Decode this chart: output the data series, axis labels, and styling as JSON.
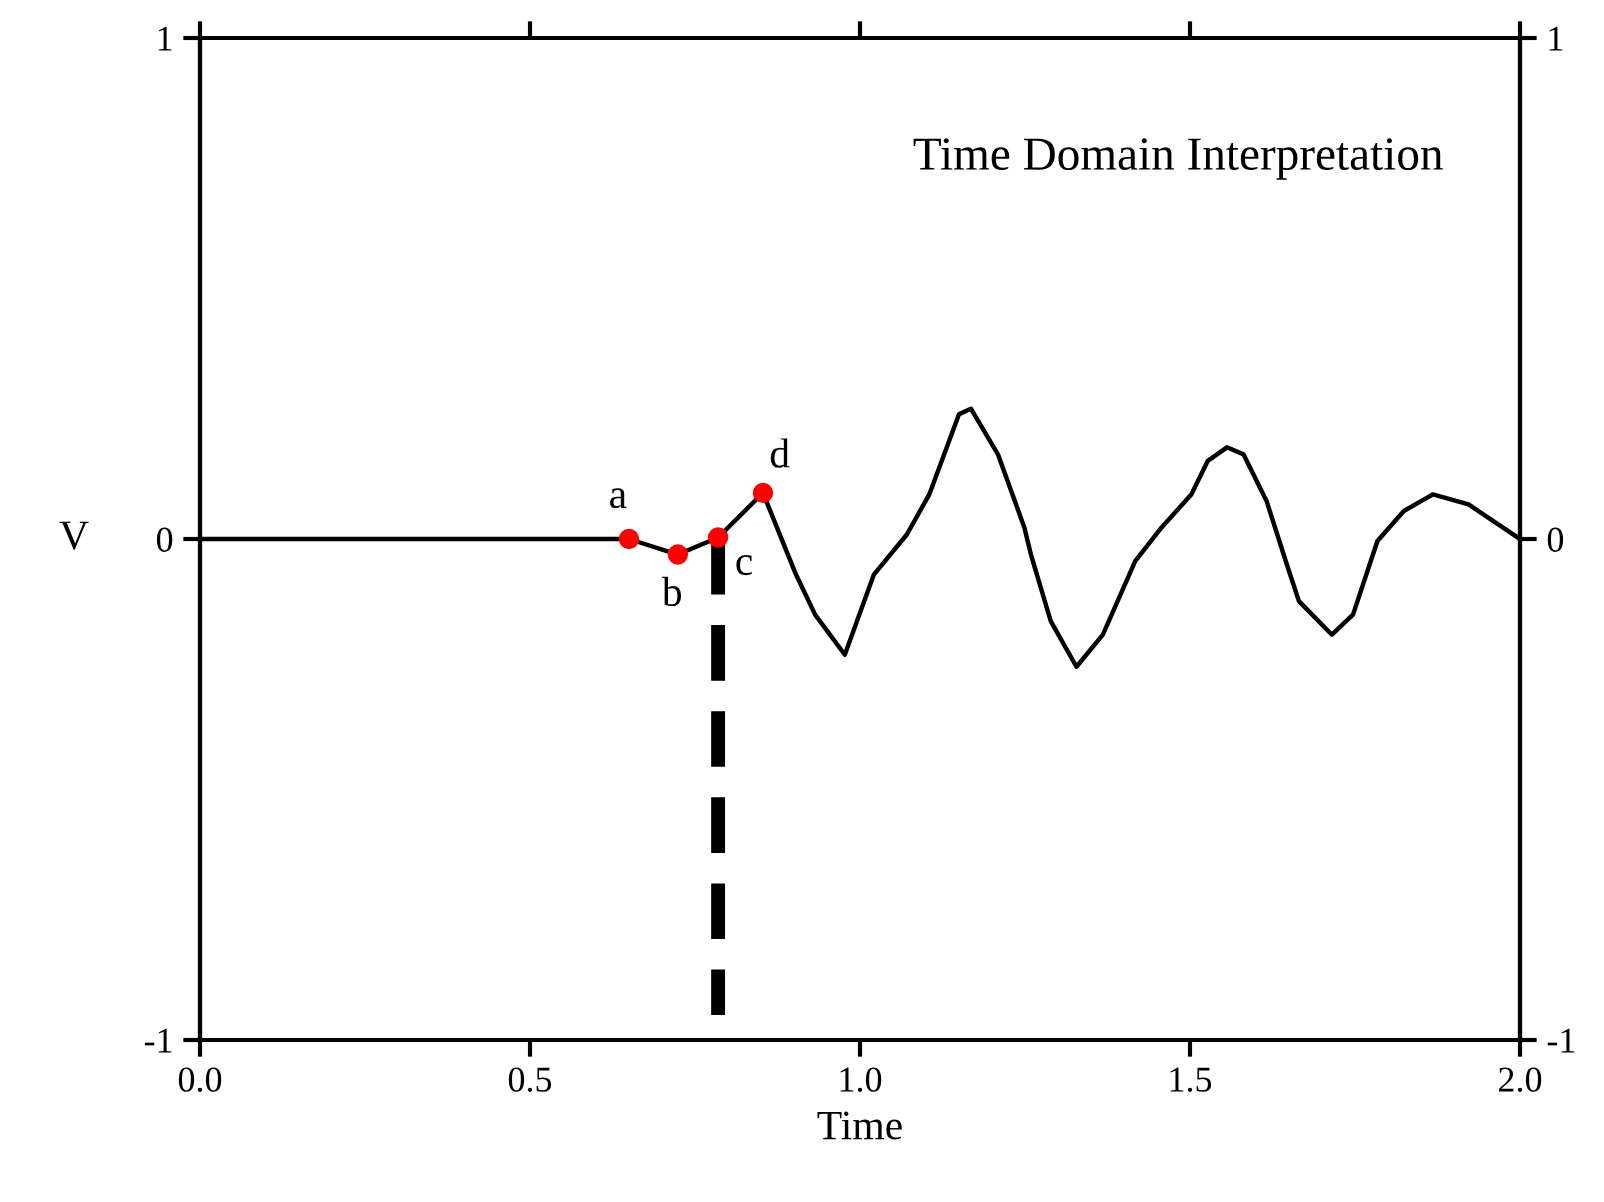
{
  "chart_data": {
    "type": "line",
    "title": "Time Domain Interpretation",
    "xlabel": "Time",
    "ylabel": "V",
    "xlim": [
      0.0,
      2.0
    ],
    "xticks": [
      {
        "value": 0,
        "label": "0.0"
      },
      {
        "value": 0.5,
        "label": "0.5"
      },
      {
        "value": 1.0,
        "label": "1.0"
      },
      {
        "value": 1.5,
        "label": "1.5"
      },
      {
        "value": 2.0,
        "label": "2.0"
      }
    ],
    "ylim": [
      -1,
      1
    ],
    "yticks": [
      -1,
      0,
      1
    ],
    "y2lim": [
      -1,
      1
    ],
    "y2ticks": [
      -1,
      0,
      1
    ],
    "grid": false,
    "legend": false,
    "series": [
      {
        "color": "#000000",
        "line_style": "solid",
        "marker": "none",
        "x": [
          0.0,
          0.65,
          0.724,
          0.785,
          0.853,
          0.903,
          0.932,
          0.977,
          1.021,
          1.071,
          1.105,
          1.15,
          1.168,
          1.209,
          1.249,
          1.259,
          1.289,
          1.328,
          1.368,
          1.417,
          1.457,
          1.502,
          1.527,
          1.556,
          1.581,
          1.616,
          1.645,
          1.665,
          1.715,
          1.747,
          1.784,
          1.824,
          1.868,
          1.922,
          2.0
        ],
        "values": [
          0.0,
          0.0,
          -0.031,
          0.003,
          0.092,
          -0.071,
          -0.151,
          -0.231,
          -0.071,
          0.009,
          0.089,
          0.249,
          0.26,
          0.169,
          0.023,
          -0.031,
          -0.164,
          -0.255,
          -0.191,
          -0.044,
          0.023,
          0.089,
          0.156,
          0.183,
          0.169,
          0.076,
          -0.044,
          -0.124,
          -0.191,
          -0.151,
          -0.004,
          0.056,
          0.089,
          0.069,
          0.0
        ]
      },
      {
        "type": "line",
        "color": "#000000",
        "line_style": "dashed",
        "marker": "none",
        "x": [
          0.785,
          0.785
        ],
        "values": [
          0.0,
          -0.95
        ]
      },
      {
        "type": "scatter",
        "color": "#ff0000",
        "marker": "circle",
        "x": [
          0.65,
          0.724,
          0.785,
          0.853
        ],
        "values": [
          0.0,
          -0.031,
          0.003,
          0.092
        ]
      }
    ],
    "annotations": [
      {
        "text": "a",
        "x": 0.65,
        "y": 0.0
      },
      {
        "text": "b",
        "x": 0.724,
        "y": -0.031
      },
      {
        "text": "c",
        "x": 0.785,
        "y": 0.003
      },
      {
        "text": "d",
        "x": 0.853,
        "y": 0.092
      }
    ]
  }
}
